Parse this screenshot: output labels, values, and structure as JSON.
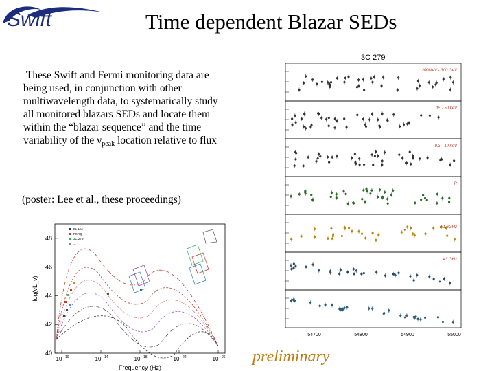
{
  "logo": {
    "text": "Swift"
  },
  "title": "Time dependent Blazar SEDs",
  "body": {
    "part1": "These Swift and Fermi monitoring data are being used, in conjunction with other multiwavelength data, to systematically study all monitored blazars SEDs and locate them within the “blazar sequence” and the time variability of the ν",
    "sub": "peak",
    "part2": " location relative to flux",
    "poster": "(poster: Lee et al., these proceedings)"
  },
  "lightcurve": {
    "source": "3C 279",
    "xticks": [
      "54700",
      "54800",
      "54900",
      "55000"
    ],
    "bands": [
      "200MeV - 300 GeV",
      "15 - 50 keV",
      "0.3 - 10 keV",
      "R",
      "J 1.6GHz",
      "43 GHz"
    ]
  },
  "sed": {
    "xlabel": "Frequency (Hz)",
    "ylabel": "log(vL_v)",
    "xticks": [
      "10",
      "10",
      "10",
      "10",
      "10"
    ],
    "xtick_exp": [
      "10",
      "14",
      "18",
      "22",
      "26"
    ],
    "yticks": [
      "40",
      "42",
      "44",
      "46",
      "48"
    ],
    "legend": [
      "BL Lac",
      "FSRQ",
      "3C 279",
      "..."
    ]
  },
  "watermark": "preliminary",
  "colors": {
    "logo": "#1d2d7c",
    "watermark": "#c07a0e"
  }
}
